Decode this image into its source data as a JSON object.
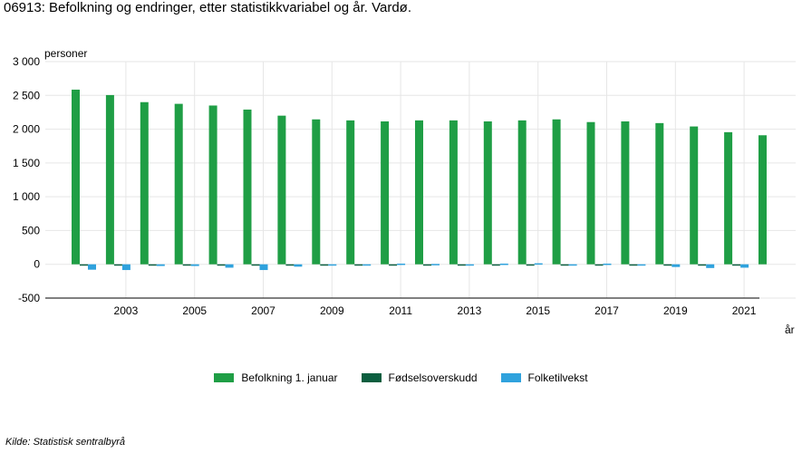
{
  "title": "06913: Befolkning og endringer, etter statistikkvariabel og år. Vardø.",
  "source": "Kilde:  Statistisk sentralbyrå",
  "chart_data": {
    "type": "bar",
    "title": "06913: Befolkning og endringer, etter statistikkvariabel og år. Vardø.",
    "ylabel": "personer",
    "xlabel": "år",
    "ylim": [
      -500,
      3000
    ],
    "yticks": [
      -500,
      0,
      500,
      1000,
      1500,
      2000,
      2500,
      3000
    ],
    "ytick_labels": [
      "-500",
      "0",
      "500",
      "1 000",
      "1 500",
      "2 000",
      "2 500",
      "3 000"
    ],
    "xtick_labels": [
      "2003",
      "2005",
      "2007",
      "2009",
      "2011",
      "2013",
      "2015",
      "2017",
      "2019",
      "2021"
    ],
    "categories": [
      "2002",
      "2003",
      "2004",
      "2005",
      "2006",
      "2007",
      "2008",
      "2009",
      "2010",
      "2011",
      "2012",
      "2013",
      "2014",
      "2015",
      "2016",
      "2017",
      "2018",
      "2019",
      "2020",
      "2021",
      "2022"
    ],
    "grid": true,
    "legend_position": "bottom",
    "series": [
      {
        "name": "Befolkning 1. januar",
        "color": "#1f9e45",
        "values": [
          2585,
          2505,
          2400,
          2375,
          2350,
          2290,
          2200,
          2145,
          2130,
          2115,
          2130,
          2130,
          2115,
          2130,
          2145,
          2105,
          2115,
          2090,
          2040,
          1955,
          1910
        ]
      },
      {
        "name": "Fødselsoverskudd",
        "color": "#0b5e3f",
        "values": [
          -5,
          -5,
          -10,
          -10,
          -10,
          -5,
          -10,
          -10,
          -10,
          -10,
          -10,
          -5,
          -10,
          -10,
          -20,
          -10,
          -5,
          -10,
          -10,
          -5,
          null
        ]
      },
      {
        "name": "Folketilvekst",
        "color": "#2fa2dd",
        "values": [
          -80,
          -85,
          -25,
          -25,
          -50,
          -85,
          -35,
          -15,
          -15,
          10,
          5,
          -5,
          10,
          15,
          -20,
          10,
          -15,
          -40,
          -55,
          -50,
          null
        ]
      }
    ]
  }
}
